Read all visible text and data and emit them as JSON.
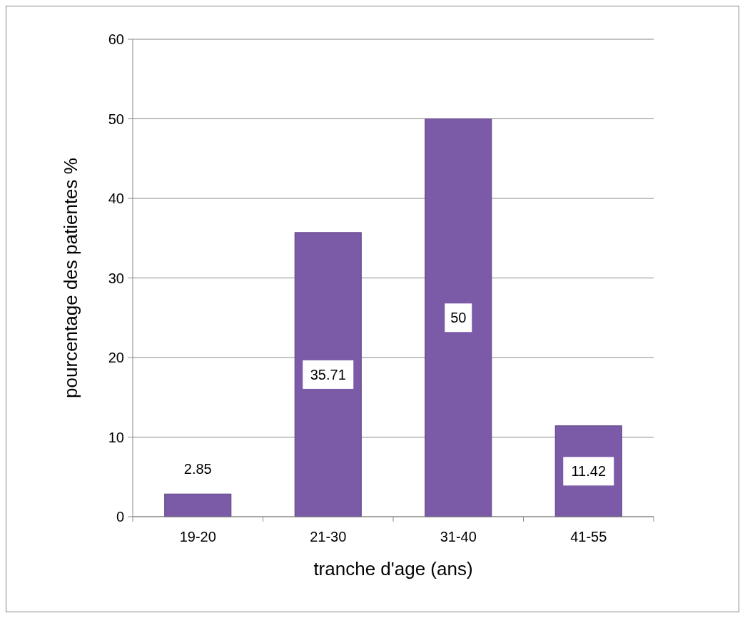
{
  "chart_data": {
    "type": "bar",
    "xlabel": "tranche d'age (ans)",
    "ylabel": "pourcentage des patientes %",
    "categories": [
      "19-20",
      "21-30",
      "31-40",
      "41-55"
    ],
    "values": [
      2.85,
      35.71,
      50,
      11.42
    ],
    "color": "#7b5aa8",
    "ylim": [
      0,
      60
    ],
    "yticks": [
      0,
      10,
      20,
      30,
      40,
      50,
      60
    ],
    "grid": "y",
    "data_labels": true
  }
}
